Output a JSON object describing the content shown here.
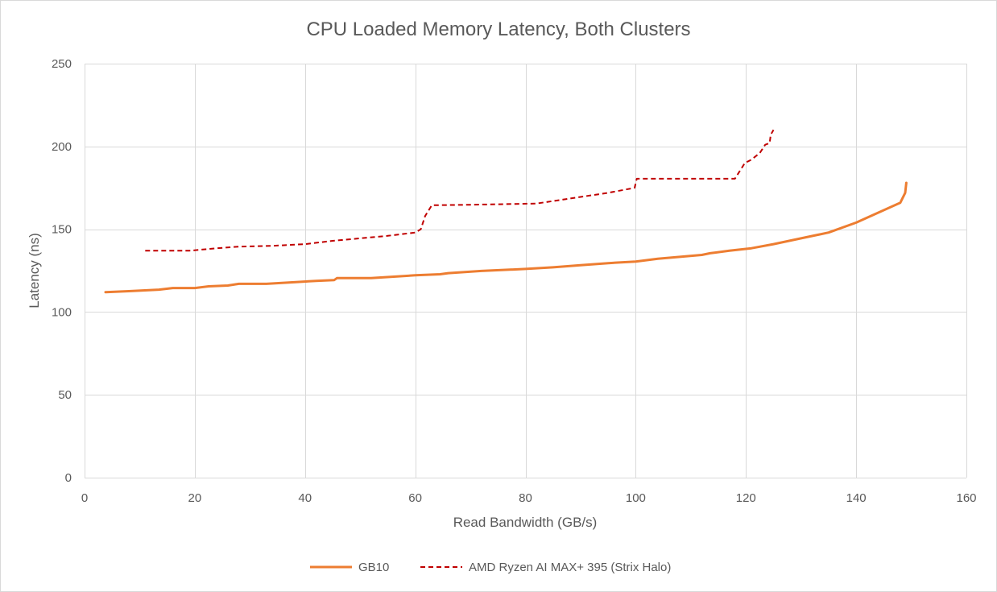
{
  "chart_data": {
    "type": "line",
    "title": "CPU Loaded Memory Latency, Both Clusters",
    "xlabel": "Read Bandwidth (GB/s)",
    "ylabel": "Latency (ns)",
    "xlim": [
      0,
      160
    ],
    "ylim": [
      0,
      250
    ],
    "xticks": [
      0,
      20,
      40,
      60,
      80,
      100,
      120,
      140,
      160
    ],
    "yticks": [
      0,
      50,
      100,
      150,
      200,
      250
    ],
    "grid": true,
    "legend": "bottom",
    "series": [
      {
        "name": "GB10",
        "color": "#ED7D31",
        "style": "solid",
        "points": [
          [
            3.8,
            112
          ],
          [
            8,
            112.6
          ],
          [
            13.5,
            113.5
          ],
          [
            16,
            114.5
          ],
          [
            20,
            114.5
          ],
          [
            22.5,
            115.5
          ],
          [
            26,
            116
          ],
          [
            28,
            117
          ],
          [
            33,
            117
          ],
          [
            38,
            118
          ],
          [
            42,
            118.8
          ],
          [
            45.3,
            119.3
          ],
          [
            45.8,
            120.5
          ],
          [
            52,
            120.5
          ],
          [
            60,
            122.2
          ],
          [
            64.5,
            122.8
          ],
          [
            66,
            123.5
          ],
          [
            72,
            124.8
          ],
          [
            80,
            126
          ],
          [
            85,
            127
          ],
          [
            90,
            128.3
          ],
          [
            95,
            129.5
          ],
          [
            100,
            130.5
          ],
          [
            104,
            132.2
          ],
          [
            112,
            134.5
          ],
          [
            113.5,
            135.5
          ],
          [
            117,
            137
          ],
          [
            121,
            138.5
          ],
          [
            125,
            141
          ],
          [
            130,
            144.5
          ],
          [
            135,
            148
          ],
          [
            140,
            154
          ],
          [
            148,
            166
          ],
          [
            148.9,
            172
          ],
          [
            149.1,
            178
          ]
        ]
      },
      {
        "name": "AMD Ryzen AI MAX+ 395 (Strix Halo)",
        "color": "#C00000",
        "style": "dashed",
        "points": [
          [
            11,
            137
          ],
          [
            15,
            137
          ],
          [
            19,
            137
          ],
          [
            24,
            138.5
          ],
          [
            28,
            139.5
          ],
          [
            34,
            140
          ],
          [
            40,
            141
          ],
          [
            45,
            143
          ],
          [
            50,
            144.5
          ],
          [
            55,
            146
          ],
          [
            60,
            148
          ],
          [
            61,
            150
          ],
          [
            61.8,
            158
          ],
          [
            63,
            164.5
          ],
          [
            70,
            164.8
          ],
          [
            82,
            165.5
          ],
          [
            90,
            169.5
          ],
          [
            95,
            172
          ],
          [
            99.8,
            175
          ],
          [
            100.2,
            180.5
          ],
          [
            110,
            180.5
          ],
          [
            118,
            180.5
          ],
          [
            119.8,
            190
          ],
          [
            121,
            192
          ],
          [
            122.5,
            196
          ],
          [
            123.5,
            201
          ],
          [
            124.3,
            202
          ],
          [
            124.5,
            207
          ],
          [
            125,
            210
          ]
        ]
      }
    ]
  }
}
